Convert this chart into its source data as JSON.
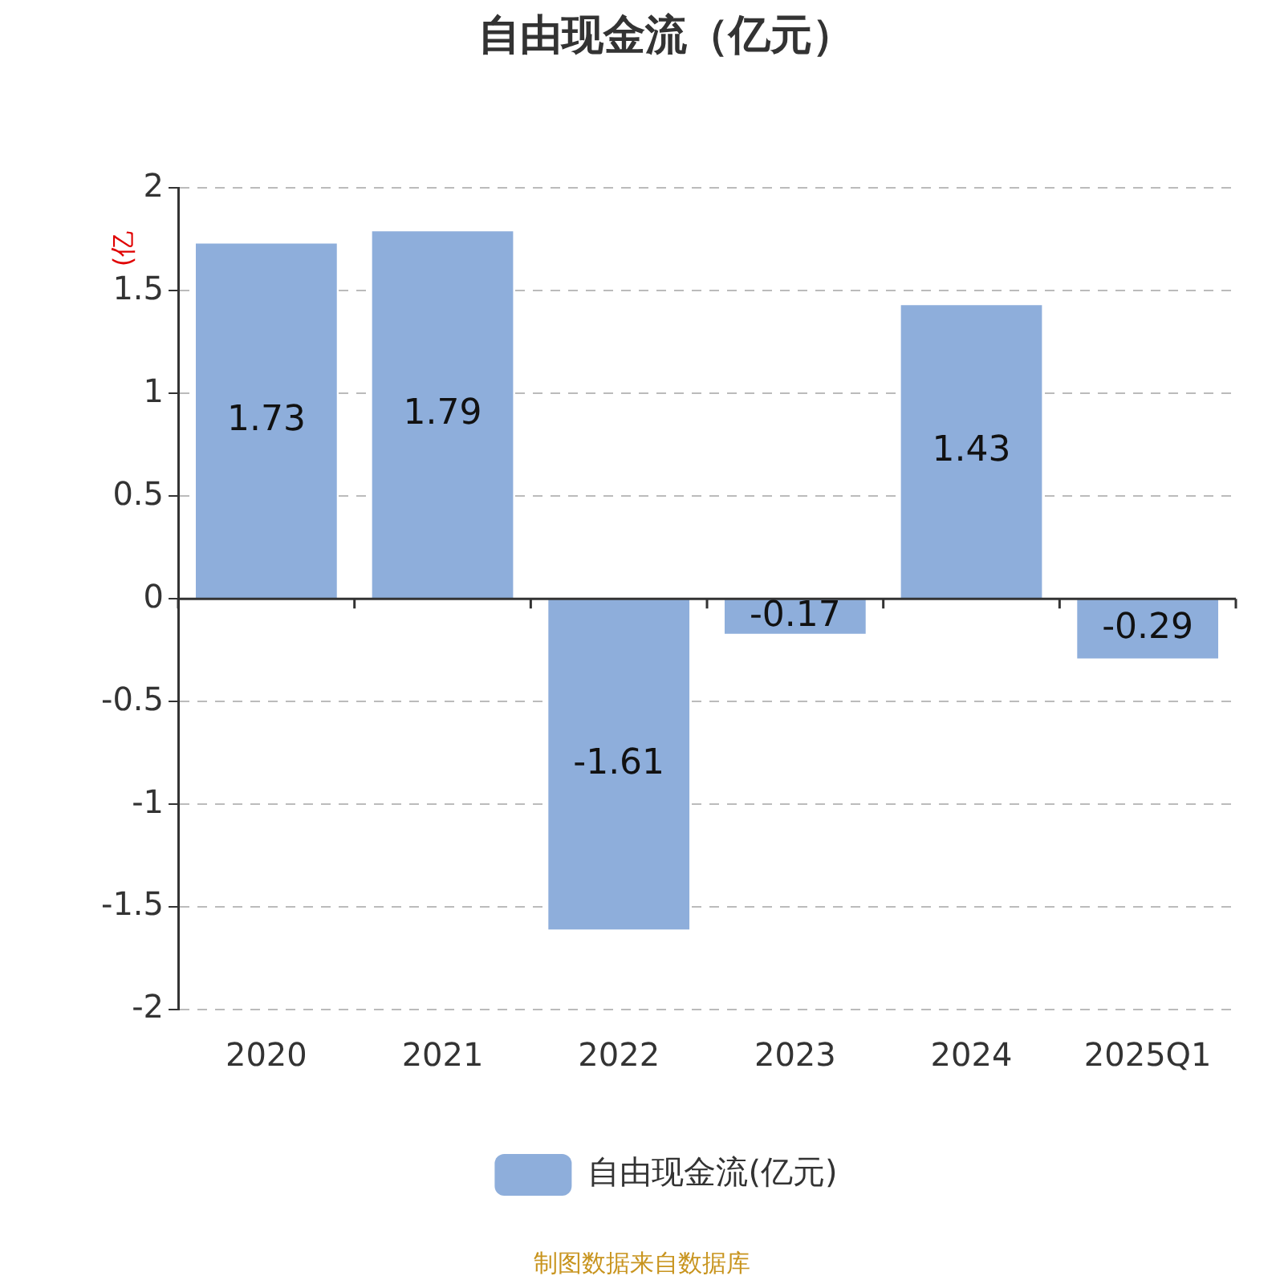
{
  "chart_data": {
    "type": "bar",
    "title": "自由现金流（亿元）",
    "ylabel": "(亿",
    "categories": [
      "2020",
      "2021",
      "2022",
      "2023",
      "2024",
      "2025Q1"
    ],
    "series": [
      {
        "name": "自由现金流(亿元)",
        "color": "#8eaedb",
        "values": [
          1.73,
          1.79,
          -1.61,
          -0.17,
          1.43,
          -0.29
        ]
      }
    ],
    "ylim": [
      -2,
      2
    ],
    "yticks": [
      -2,
      -1.5,
      -1,
      -0.5,
      0,
      0.5,
      1,
      1.5,
      2
    ],
    "grid": "y",
    "legend": "bottom",
    "data_labels": true,
    "annotations": [
      "制图数据来自数据库"
    ]
  }
}
